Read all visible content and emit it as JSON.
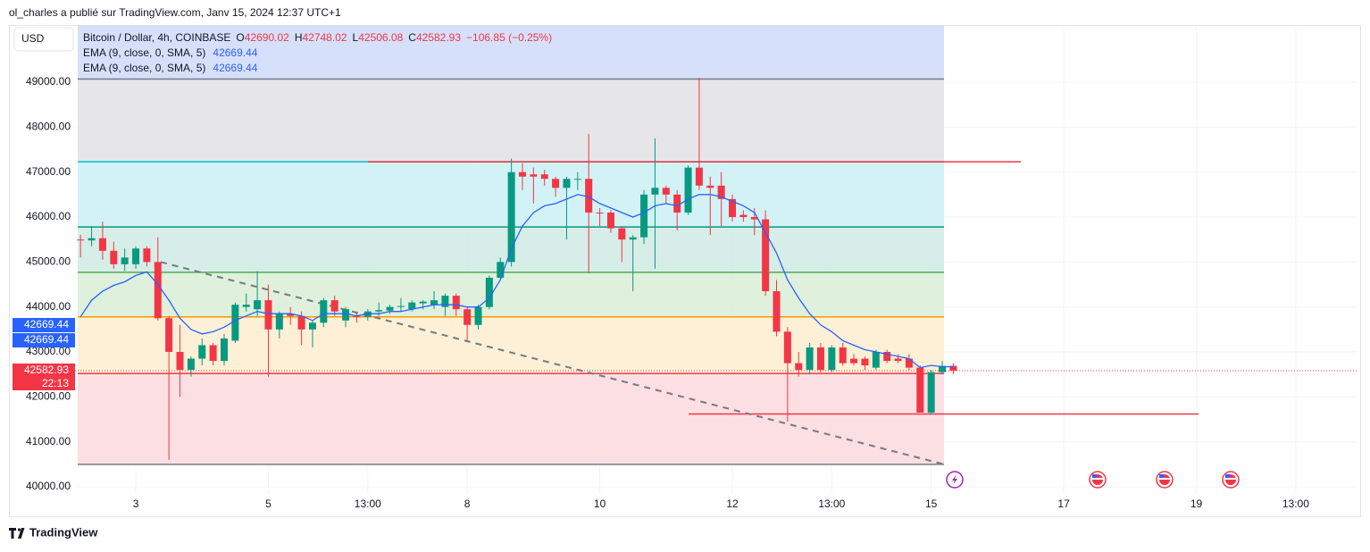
{
  "header": "ol_charles a publié sur TradingView.com, Janv 15, 2024 12:37 UTC+1",
  "footer": "TradingView",
  "chart_data": {
    "type": "candlestick",
    "currency": "USD",
    "legend": {
      "symbol": "Bitcoin / Dollar, 4h, COINBASE",
      "ohlc": [
        {
          "key": "O",
          "value": 42690.02
        },
        {
          "key": "H",
          "value": 42748.02
        },
        {
          "key": "L",
          "value": 42506.08
        },
        {
          "key": "C",
          "value": 42582.93
        }
      ],
      "change": "−106.85 (−0.25%)",
      "indicators": [
        {
          "name": "EMA (9, close, 0, SMA, 5)",
          "value": 42669.44
        },
        {
          "name": "EMA (9, close, 0, SMA, 5)",
          "value": 42669.44
        }
      ]
    },
    "up_color": "#089981",
    "down_color": "#f23645",
    "categories": [
      null,
      null,
      null,
      null,
      null,
      "3",
      null,
      null,
      null,
      null,
      null,
      null,
      null,
      null,
      null,
      null,
      null,
      "5",
      null,
      null,
      null,
      null,
      null,
      null,
      null,
      null,
      "13:00",
      null,
      null,
      null,
      null,
      null,
      null,
      null,
      null,
      "8",
      null,
      null,
      null,
      null,
      null,
      null,
      null,
      null,
      null,
      null,
      null,
      "10",
      null,
      null,
      null,
      null,
      null,
      null,
      null,
      null,
      null,
      null,
      null,
      "12",
      null,
      null,
      null,
      null,
      null,
      null,
      null,
      null,
      "13:00",
      null,
      null,
      null,
      null,
      null,
      null,
      null,
      null,
      "15",
      null,
      null,
      null,
      null,
      null,
      null,
      null,
      null,
      null,
      null,
      null,
      "17",
      null,
      null,
      null,
      null,
      null,
      null,
      null,
      null,
      null,
      null,
      null,
      "19",
      null,
      null,
      null,
      null,
      null,
      null,
      null,
      null,
      "13:00",
      null,
      null,
      null,
      null,
      null
    ],
    "open": [
      45500,
      45480,
      45530,
      45250,
      44950,
      44950,
      45300,
      45000,
      43750,
      43000,
      42600,
      42850,
      43150,
      42800,
      43250,
      44000,
      43950,
      44150,
      43500,
      43850,
      43800,
      43500,
      43650,
      44150,
      43700,
      43800,
      43780,
      43900,
      43920,
      44000,
      43950,
      44080,
      44050,
      44000,
      44250,
      43950,
      43600,
      44000,
      44650,
      45000,
      47000,
      46950,
      46950,
      46850,
      46650,
      46850,
      46850,
      46100,
      46100,
      45750,
      45500,
      45550,
      46500,
      46650,
      46500,
      46100,
      47100,
      46700,
      46700,
      46400,
      46050,
      46000,
      45950,
      44350,
      43450,
      42750,
      42600,
      43100,
      42600,
      43100,
      42850,
      42850,
      42650,
      43000,
      42850,
      42850,
      42650,
      41650,
      42550,
      42690.02,
      null,
      null,
      null,
      null,
      null,
      null,
      null,
      null,
      null,
      null,
      null,
      null,
      null,
      null,
      null,
      null,
      null,
      null,
      null,
      null,
      null,
      null,
      null,
      null,
      null,
      null,
      null,
      null,
      null,
      null,
      null,
      null,
      null,
      null,
      null,
      null
    ],
    "high": [
      45600,
      45800,
      45900,
      45450,
      45300,
      45350,
      45350,
      45550,
      43800,
      43600,
      42900,
      43300,
      43200,
      43400,
      44100,
      44300,
      44800,
      44500,
      43900,
      44000,
      43900,
      43700,
      44200,
      44250,
      44000,
      43900,
      43950,
      44100,
      44050,
      44200,
      44150,
      44150,
      44350,
      44300,
      44300,
      44000,
      44050,
      44700,
      45100,
      47300,
      47200,
      47100,
      47050,
      46900,
      46900,
      47000,
      47850,
      46200,
      46150,
      45800,
      45600,
      46600,
      47750,
      46700,
      46600,
      47150,
      49100,
      46900,
      47000,
      46500,
      46150,
      46200,
      46150,
      44600,
      43550,
      43000,
      43200,
      43200,
      43150,
      43200,
      42950,
      42900,
      43050,
      43050,
      42950,
      42950,
      42700,
      42600,
      42800,
      42748.02,
      null,
      null,
      null,
      null,
      null,
      null,
      null,
      null,
      null,
      null,
      null,
      null,
      null,
      null,
      null,
      null,
      null,
      null,
      null,
      null,
      null,
      null,
      null,
      null,
      null,
      null,
      null,
      null,
      null,
      null,
      null,
      null,
      null,
      null,
      null,
      null
    ],
    "low": [
      45100,
      45350,
      45050,
      44850,
      44800,
      44850,
      44900,
      43700,
      40600,
      42000,
      42450,
      42700,
      42700,
      42700,
      43200,
      43900,
      43800,
      42450,
      43300,
      43600,
      43150,
      43100,
      43550,
      43800,
      43550,
      43650,
      43700,
      43800,
      43850,
      43900,
      43900,
      43950,
      43950,
      43800,
      43800,
      43250,
      43500,
      43950,
      44600,
      44900,
      46600,
      46300,
      46700,
      46450,
      45500,
      46600,
      44750,
      45800,
      45650,
      45000,
      44350,
      45400,
      44850,
      46300,
      45700,
      46050,
      46600,
      45600,
      45800,
      45900,
      45900,
      45600,
      44250,
      43350,
      41450,
      42450,
      42500,
      42550,
      42550,
      42700,
      42700,
      42600,
      42600,
      42750,
      42750,
      42600,
      41650,
      41600,
      42500,
      42506.08,
      null,
      null,
      null,
      null,
      null,
      null,
      null,
      null,
      null,
      null,
      null,
      null,
      null,
      null,
      null,
      null,
      null,
      null,
      null,
      null,
      null,
      null,
      null,
      null,
      null,
      null,
      null,
      null,
      null,
      null,
      null,
      null,
      null,
      null,
      null,
      null
    ],
    "close": [
      45480,
      45530,
      45250,
      44950,
      45100,
      45300,
      45000,
      43750,
      43000,
      42600,
      42850,
      43150,
      42800,
      43300,
      44050,
      44050,
      44150,
      43500,
      43850,
      43800,
      43500,
      43650,
      44150,
      43900,
      43950,
      43780,
      43900,
      43930,
      44000,
      44020,
      44100,
      44120,
      44150,
      44250,
      43950,
      43600,
      44000,
      44650,
      45000,
      47000,
      46900,
      46900,
      46850,
      46650,
      46850,
      46850,
      46100,
      46080,
      45750,
      45500,
      45550,
      46500,
      46650,
      46500,
      46100,
      47100,
      46700,
      46650,
      46400,
      46000,
      46000,
      45950,
      44350,
      43450,
      42750,
      42600,
      43100,
      42600,
      43100,
      42750,
      42750,
      42700,
      43000,
      42800,
      42800,
      42650,
      41650,
      42550,
      42690,
      42582.93,
      null,
      null,
      null,
      null,
      null,
      null,
      null,
      null,
      null,
      null,
      null,
      null,
      null,
      null,
      null,
      null,
      null,
      null,
      null,
      null,
      null,
      null,
      null,
      null,
      null,
      null,
      null,
      null,
      null,
      null,
      null,
      null,
      null,
      null,
      null,
      null
    ],
    "ema": {
      "color": "#2962ff",
      "values": [
        43780,
        44150,
        44350,
        44480,
        44560,
        44700,
        44780,
        44500,
        44150,
        43750,
        43500,
        43400,
        43450,
        43550,
        43700,
        43800,
        43900,
        43850,
        43850,
        43850,
        43800,
        43700,
        43850,
        43850,
        43850,
        43800,
        43850,
        43850,
        43900,
        43900,
        43950,
        44000,
        44050,
        44050,
        44050,
        44000,
        44000,
        44200,
        44600,
        45300,
        45800,
        46100,
        46250,
        46300,
        46400,
        46500,
        46450,
        46300,
        46200,
        46100,
        46000,
        46100,
        46250,
        46300,
        46250,
        46400,
        46500,
        46500,
        46450,
        46350,
        46250,
        46100,
        45650,
        45200,
        44600,
        44200,
        43850,
        43600,
        43450,
        43250,
        43150,
        43050,
        43000,
        42950,
        42900,
        42850,
        42650,
        42700,
        42670,
        42669.44,
        null,
        null,
        null,
        null,
        null,
        null,
        null,
        null,
        null,
        null,
        null,
        null,
        null,
        null,
        null,
        null,
        null,
        null,
        null,
        null,
        null,
        null,
        null,
        null,
        null,
        null,
        null,
        null,
        null,
        null,
        null,
        null,
        null,
        null,
        null,
        null
      ]
    },
    "ylim": [
      39841,
      50272
    ],
    "yticks": [
      {
        "value": 40000,
        "label": "40000.00"
      },
      {
        "value": 41000,
        "label": "41000.00"
      },
      {
        "value": 42000,
        "label": "42000.00"
      },
      {
        "value": 43000,
        "label": "43000.00"
      },
      {
        "value": 44000,
        "label": "44000.00"
      },
      {
        "value": 45000,
        "label": "45000.00"
      },
      {
        "value": 46000,
        "label": "46000.00"
      },
      {
        "value": 47000,
        "label": "47000.00"
      },
      {
        "value": 48000,
        "label": "48000.00"
      },
      {
        "value": 49000,
        "label": "49000.00"
      }
    ],
    "grid": true,
    "top_fill": "#d7e0fb",
    "levels": [
      {
        "value": 49070,
        "line": "#787b86",
        "fill": "#e3e3e6"
      },
      {
        "value": 47230,
        "line": "#00bcd4",
        "fill": "#cdf1f5"
      },
      {
        "value": 45780,
        "line": "#089981",
        "fill": "#d3ebe6"
      },
      {
        "value": 44770,
        "line": "#4caf50",
        "fill": "#dbeed8"
      },
      {
        "value": 43780,
        "line": "#ff9800",
        "fill": "#fdeed3"
      },
      {
        "value": 42520,
        "line": "#f23645",
        "fill": "#fcdbe0"
      },
      {
        "value": 40500,
        "line": "#787b86",
        "fill": "#ffffff"
      }
    ],
    "rays": [
      {
        "value": 47230,
        "color": "#f23645"
      },
      {
        "value": 41620,
        "color": "#f23645"
      }
    ],
    "trendline": {
      "start": 45000,
      "end": 40500,
      "color": "#787b86"
    },
    "price_labels": [
      {
        "value": 42669.44,
        "color": "#2962ff"
      },
      {
        "value": 42669.44,
        "color": "#2962ff"
      },
      {
        "value": 42582.93,
        "color": "#f23645",
        "countdown": "22:13"
      }
    ]
  }
}
